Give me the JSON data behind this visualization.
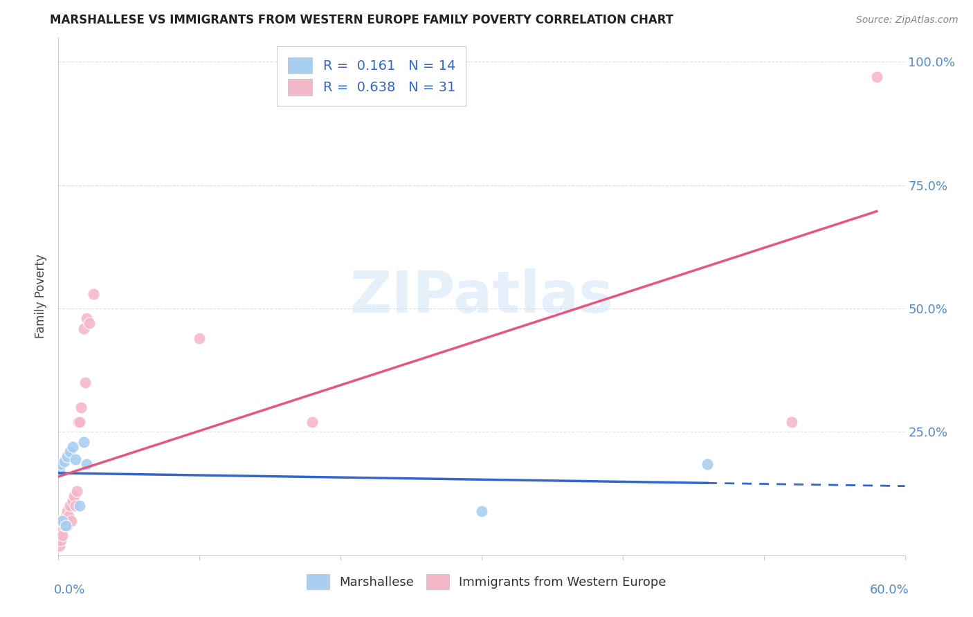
{
  "title": "MARSHALLESE VS IMMIGRANTS FROM WESTERN EUROPE FAMILY POVERTY CORRELATION CHART",
  "source": "Source: ZipAtlas.com",
  "ylabel": "Family Poverty",
  "xlim": [
    0.0,
    0.6
  ],
  "ylim": [
    0.0,
    1.05
  ],
  "watermark": "ZIPatlas",
  "legend_r1": "R =  0.161   N = 14",
  "legend_r2": "R =  0.638   N = 31",
  "blue_color": "#a8cff0",
  "pink_color": "#f5b8c8",
  "blue_line_color": "#3366cc",
  "pink_line_color": "#e85580",
  "blue_scatter_edge": "white",
  "pink_scatter_edge": "white",
  "grid_color": "#dddddd",
  "spine_color": "#cccccc",
  "title_color": "#222222",
  "source_color": "#888888",
  "ytick_color": "#5588cc",
  "xtick_color": "#5588cc",
  "marshallese_x": [
    0.001,
    0.002,
    0.003,
    0.004,
    0.005,
    0.006,
    0.008,
    0.01,
    0.012,
    0.015,
    0.018,
    0.02,
    0.3,
    0.46
  ],
  "marshallese_y": [
    0.175,
    0.185,
    0.07,
    0.19,
    0.06,
    0.2,
    0.21,
    0.22,
    0.195,
    0.1,
    0.23,
    0.185,
    0.09,
    0.185
  ],
  "western_europe_x": [
    0.001,
    0.001,
    0.001,
    0.002,
    0.002,
    0.002,
    0.003,
    0.004,
    0.005,
    0.005,
    0.006,
    0.006,
    0.007,
    0.008,
    0.009,
    0.01,
    0.011,
    0.012,
    0.013,
    0.014,
    0.015,
    0.016,
    0.018,
    0.019,
    0.02,
    0.022,
    0.025,
    0.1,
    0.18,
    0.52,
    0.58
  ],
  "western_europe_y": [
    0.02,
    0.04,
    0.06,
    0.03,
    0.05,
    0.07,
    0.04,
    0.06,
    0.07,
    0.08,
    0.06,
    0.09,
    0.08,
    0.1,
    0.07,
    0.11,
    0.12,
    0.1,
    0.13,
    0.27,
    0.27,
    0.3,
    0.46,
    0.35,
    0.48,
    0.47,
    0.53,
    0.44,
    0.27,
    0.27,
    0.97
  ],
  "yticks": [
    0.0,
    0.25,
    0.5,
    0.75,
    1.0
  ],
  "ytick_labels": [
    "",
    "25.0%",
    "50.0%",
    "75.0%",
    "100.0%"
  ],
  "xtick_positions": [
    0.0,
    0.1,
    0.2,
    0.3,
    0.4,
    0.5,
    0.6
  ],
  "legend_labels": [
    "Marshallese",
    "Immigrants from Western Europe"
  ]
}
